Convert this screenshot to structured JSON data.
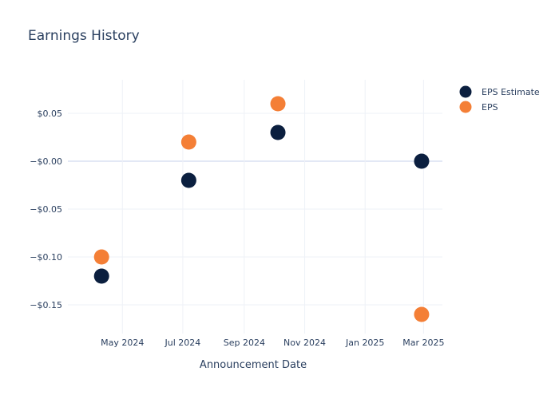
{
  "chart_data": {
    "type": "scatter",
    "title": "Earnings History",
    "xlabel": "Announcement Date",
    "ylabel": "",
    "x_axis_type": "date",
    "xlim": [
      "2024-03-07",
      "2025-03-20"
    ],
    "ylim": [
      -0.18,
      0.085
    ],
    "x_ticks": [
      {
        "date": "2024-05-01",
        "label": "May 2024"
      },
      {
        "date": "2024-07-01",
        "label": "Jul 2024"
      },
      {
        "date": "2024-09-01",
        "label": "Sep 2024"
      },
      {
        "date": "2024-11-01",
        "label": "Nov 2024"
      },
      {
        "date": "2025-01-01",
        "label": "Jan 2025"
      },
      {
        "date": "2025-03-01",
        "label": "Mar 2025"
      }
    ],
    "y_ticks": [
      {
        "value": 0.05,
        "label": "$0.05"
      },
      {
        "value": 0.0,
        "label": "−$0.00"
      },
      {
        "value": -0.05,
        "label": "−$0.05"
      },
      {
        "value": -0.1,
        "label": "−$0.10"
      },
      {
        "value": -0.15,
        "label": "−$0.15"
      }
    ],
    "grid": true,
    "legend_position": "top-right",
    "series": [
      {
        "name": "EPS Estimate",
        "color": "#0b1f3f",
        "points": [
          {
            "x": "2024-04-10",
            "y": -0.12
          },
          {
            "x": "2024-07-07",
            "y": -0.02
          },
          {
            "x": "2024-10-05",
            "y": 0.03
          },
          {
            "x": "2025-02-27",
            "y": 0.0
          }
        ]
      },
      {
        "name": "EPS",
        "color": "#f47f36",
        "points": [
          {
            "x": "2024-04-10",
            "y": -0.1
          },
          {
            "x": "2024-07-07",
            "y": 0.02
          },
          {
            "x": "2024-10-05",
            "y": 0.06
          },
          {
            "x": "2025-02-27",
            "y": -0.16
          }
        ]
      }
    ]
  }
}
